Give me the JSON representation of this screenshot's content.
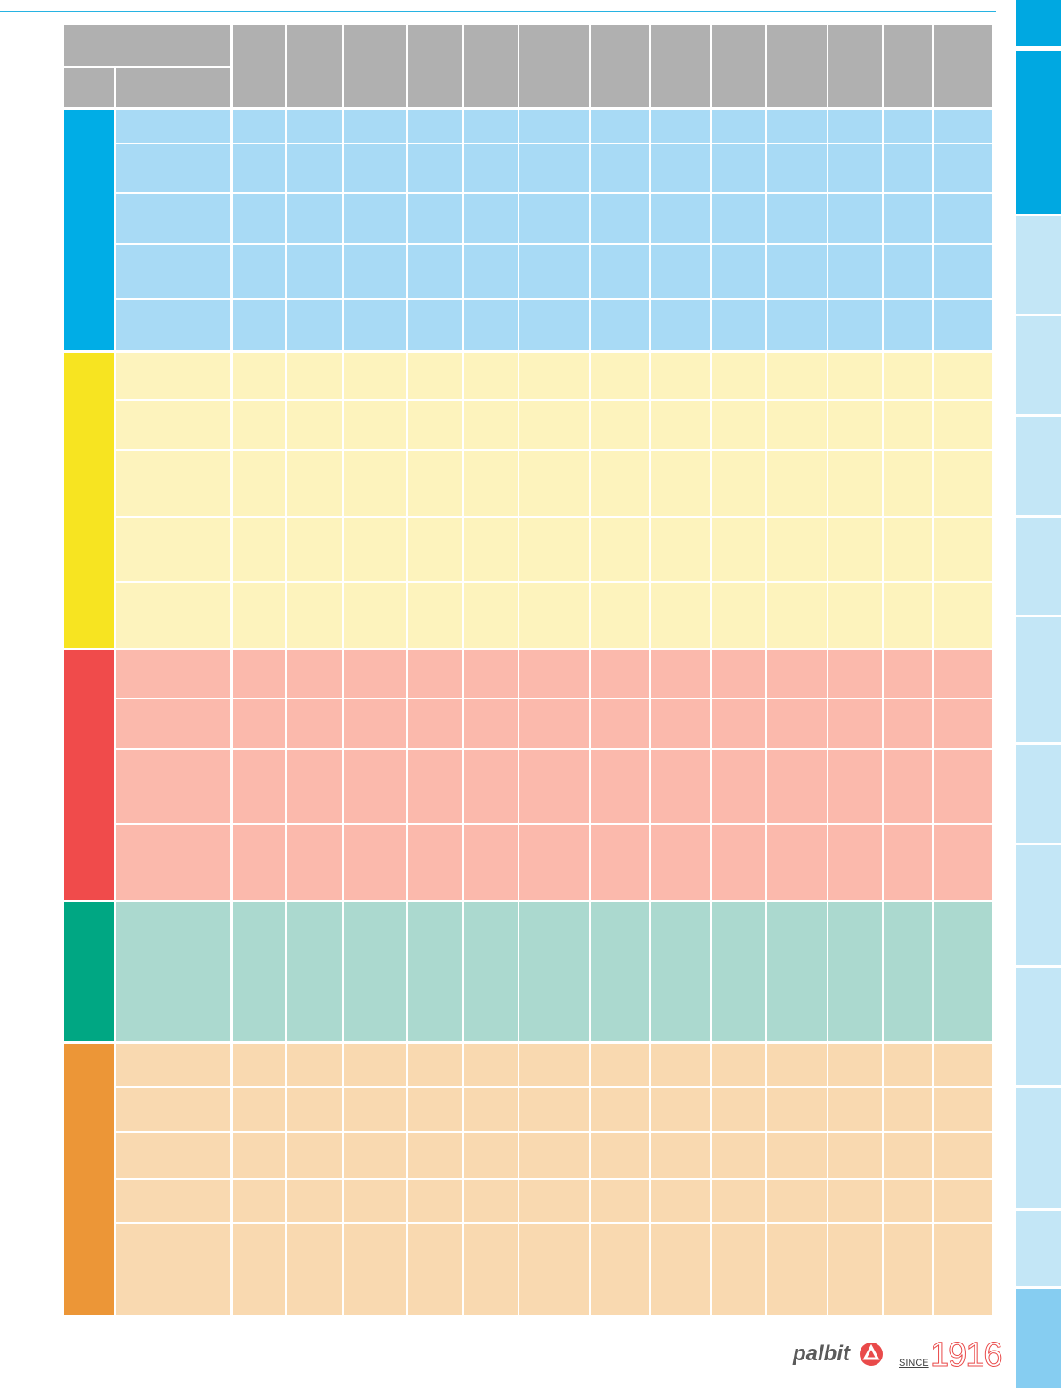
{
  "footer": {
    "brand": "palbit",
    "since": "SINCE",
    "year": "1916"
  }
}
